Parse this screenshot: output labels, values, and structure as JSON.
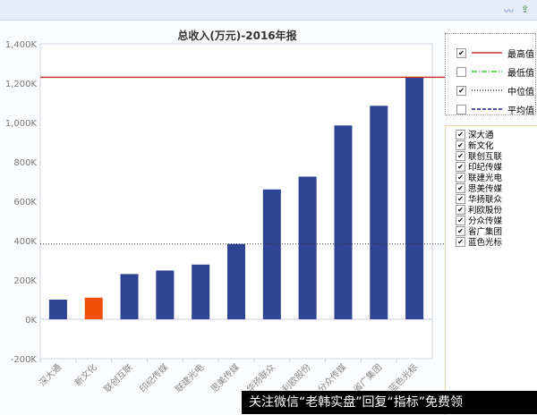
{
  "toolbar": {
    "icons": [
      "line-chart-icon",
      "export-icon"
    ]
  },
  "chart_data": {
    "type": "bar",
    "title": "总收入(万元)-2016年报",
    "categories": [
      "深大通",
      "新文化",
      "联创互联",
      "印纪传媒",
      "联建光电",
      "思美传媒",
      "华扬联众",
      "利欧股份",
      "分众传媒",
      "省广集团",
      "蓝色光标"
    ],
    "values": [
      100,
      110,
      230,
      248,
      278,
      383,
      660,
      725,
      985,
      1085,
      1230
    ],
    "unit": "K",
    "highlight": "新文化",
    "colors": {
      "bar": "#2e4494",
      "highlight": "#f0500c",
      "max": "#c0392b",
      "min": "#33cc33",
      "median": "#333333",
      "mean": "#1a237e"
    },
    "ylim": [
      -200,
      1400
    ],
    "yticks": [
      "-200K",
      "0K",
      "200K",
      "400K",
      "600K",
      "800K",
      "1,000K",
      "1,200K",
      "1,400K"
    ],
    "reference_lines": {
      "max": 1230,
      "median": 383
    },
    "grid": false,
    "legend_placement": "right"
  },
  "legend": [
    {
      "label": "最高值",
      "checked": true,
      "style": "solid",
      "color": "#c0392b"
    },
    {
      "label": "最低值",
      "checked": false,
      "style": "dashdot",
      "color": "#33cc33"
    },
    {
      "label": "中位值",
      "checked": true,
      "style": "dotted",
      "color": "#333333"
    },
    {
      "label": "平均值",
      "checked": false,
      "style": "dashed",
      "color": "#1a237e"
    }
  ],
  "companies": [
    "深大通",
    "新文化",
    "联创互联",
    "印纪传媒",
    "联建光电",
    "思美传媒",
    "华扬联众",
    "利欧股份",
    "分众传媒",
    "省广集团",
    "蓝色光标"
  ],
  "watermark": "关注微信“老韩实盘”回复“指标”免费领"
}
